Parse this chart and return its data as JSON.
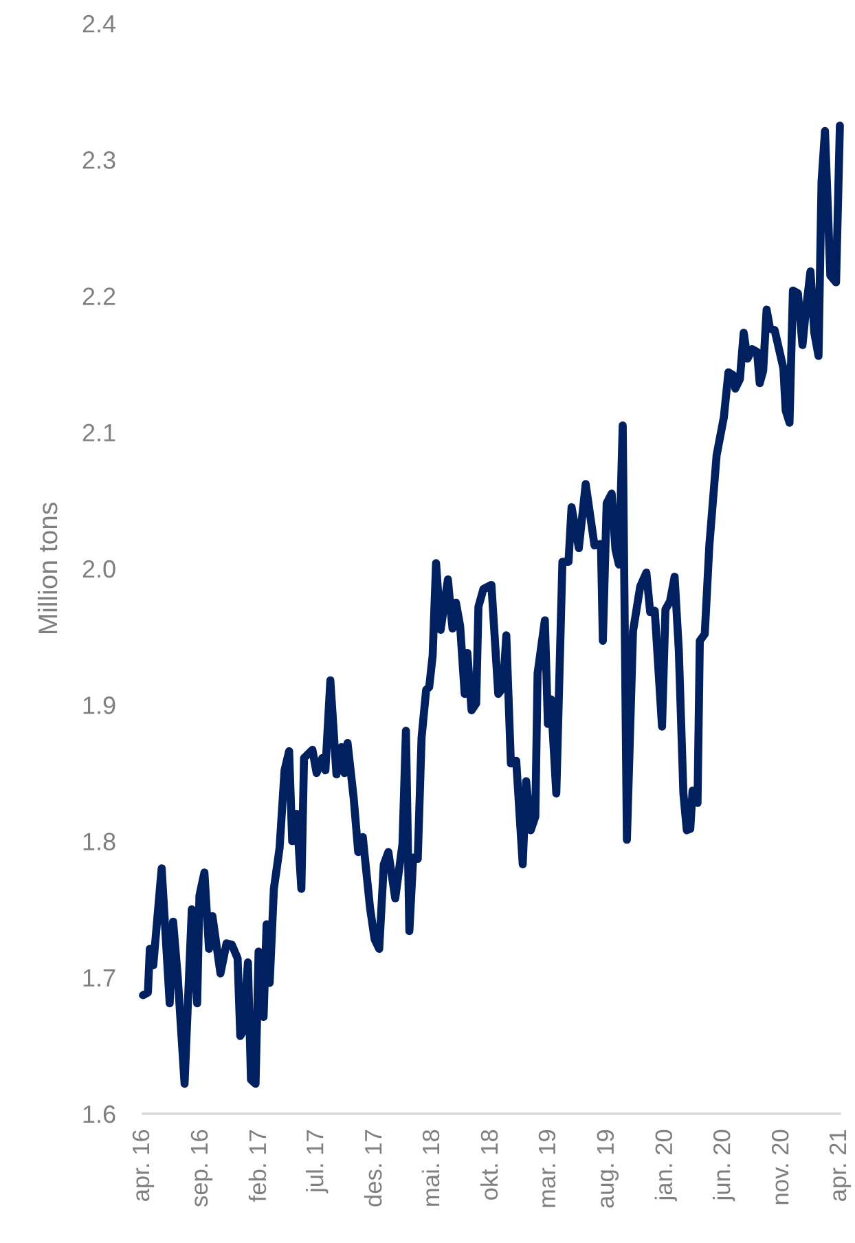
{
  "chart_data": {
    "type": "line",
    "ylabel": "Million tons",
    "ylim": [
      1.6,
      2.4
    ],
    "yticks": [
      1.6,
      1.7,
      1.8,
      1.9,
      {
        "value": 2.0,
        "label": "2.0"
      },
      2.1,
      2.2,
      2.3,
      2.4
    ],
    "xlim": [
      "2016-04-01",
      "2021-04-01"
    ],
    "xticks": [
      {
        "value": "2016-04-01",
        "label": "apr. 16"
      },
      {
        "value": "2016-09-01",
        "label": "sep. 16"
      },
      {
        "value": "2017-02-01",
        "label": "feb. 17"
      },
      {
        "value": "2017-07-01",
        "label": "jul. 17"
      },
      {
        "value": "2017-12-01",
        "label": "des. 17"
      },
      {
        "value": "2018-05-01",
        "label": "mai. 18"
      },
      {
        "value": "2018-10-01",
        "label": "okt. 18"
      },
      {
        "value": "2019-03-01",
        "label": "mar. 19"
      },
      {
        "value": "2019-08-01",
        "label": "aug. 19"
      },
      {
        "value": "2020-01-01",
        "label": "jan. 20"
      },
      {
        "value": "2020-06-01",
        "label": "jun. 20"
      },
      {
        "value": "2020-11-01",
        "label": "nov. 20"
      },
      {
        "value": "2021-04-01",
        "label": "apr. 21"
      }
    ],
    "grid": false,
    "legend": false,
    "marker": "none",
    "line_style": "solid",
    "series": [
      {
        "color": "#002060",
        "x": [
          "2016-04-01",
          "2016-04-14",
          "2016-04-19",
          "2016-04-28",
          "2016-05-20",
          "2016-06-10",
          "2016-06-19",
          "2016-07-01",
          "2016-07-19",
          "2016-08-07",
          "2016-08-21",
          "2016-08-27",
          "2016-09-09",
          "2016-09-21",
          "2016-09-30",
          "2016-10-21",
          "2016-11-06",
          "2016-11-20",
          "2016-12-05",
          "2016-12-12",
          "2016-12-20",
          "2017-01-01",
          "2017-01-09",
          "2017-01-21",
          "2017-01-29",
          "2017-02-11",
          "2017-02-19",
          "2017-02-27",
          "2017-03-10",
          "2017-03-25",
          "2017-04-07",
          "2017-04-19",
          "2017-04-27",
          "2017-05-09",
          "2017-05-21",
          "2017-05-28",
          "2017-06-19",
          "2017-06-30",
          "2017-07-15",
          "2017-07-23",
          "2017-08-05",
          "2017-08-21",
          "2017-09-03",
          "2017-09-11",
          "2017-09-19",
          "2017-10-05",
          "2017-10-17",
          "2017-10-29",
          "2017-11-17",
          "2017-11-29",
          "2017-12-11",
          "2017-12-23",
          "2018-01-04",
          "2018-01-22",
          "2018-02-10",
          "2018-02-19",
          "2018-02-28",
          "2018-03-10",
          "2018-03-22",
          "2018-04-01",
          "2018-04-13",
          "2018-04-21",
          "2018-04-30",
          "2018-05-09",
          "2018-05-21",
          "2018-06-09",
          "2018-06-21",
          "2018-06-30",
          "2018-07-11",
          "2018-07-23",
          "2018-07-30",
          "2018-08-10",
          "2018-08-22",
          "2018-08-28",
          "2018-09-10",
          "2018-10-01",
          "2018-10-19",
          "2018-11-01",
          "2018-11-09",
          "2018-11-21",
          "2018-12-05",
          "2018-12-22",
          "2018-12-31",
          "2019-01-12",
          "2019-01-24",
          "2019-01-30",
          "2019-02-18",
          "2019-02-26",
          "2019-03-06",
          "2019-03-20",
          "2019-04-05",
          "2019-04-21",
          "2019-04-29",
          "2019-05-18",
          "2019-06-05",
          "2019-06-28",
          "2019-07-15",
          "2019-07-20",
          "2019-07-30",
          "2019-08-12",
          "2019-08-22",
          "2019-08-31",
          "2019-09-10",
          "2019-09-21",
          "2019-10-07",
          "2019-10-26",
          "2019-11-11",
          "2019-11-21",
          "2019-12-03",
          "2019-12-22",
          "2019-12-31",
          "2020-01-12",
          "2020-01-24",
          "2020-02-04",
          "2020-02-16",
          "2020-02-25",
          "2020-03-05",
          "2020-03-11",
          "2020-03-24",
          "2020-03-30",
          "2020-04-12",
          "2020-04-24",
          "2020-05-13",
          "2020-06-01",
          "2020-06-13",
          "2020-06-25",
          "2020-07-01",
          "2020-07-13",
          "2020-07-23",
          "2020-08-02",
          "2020-08-14",
          "2020-08-27",
          "2020-09-03",
          "2020-09-12",
          "2020-09-21",
          "2020-09-30",
          "2020-10-12",
          "2020-11-04",
          "2020-11-10",
          "2020-11-20",
          "2020-11-29",
          "2020-12-12",
          "2020-12-24",
          "2021-01-02",
          "2021-01-14",
          "2021-01-24",
          "2021-02-04",
          "2021-02-12",
          "2021-02-21",
          "2021-03-07",
          "2021-03-22",
          "2021-04-01"
        ],
        "values": [
          1.687,
          1.689,
          1.721,
          1.709,
          1.78,
          1.681,
          1.741,
          1.701,
          1.622,
          1.75,
          1.681,
          1.76,
          1.777,
          1.721,
          1.745,
          1.703,
          1.725,
          1.724,
          1.714,
          1.657,
          1.661,
          1.711,
          1.625,
          1.622,
          1.719,
          1.671,
          1.739,
          1.696,
          1.765,
          1.795,
          1.852,
          1.866,
          1.8,
          1.82,
          1.765,
          1.861,
          1.867,
          1.85,
          1.861,
          1.852,
          1.918,
          1.849,
          1.869,
          1.85,
          1.872,
          1.832,
          1.792,
          1.803,
          1.751,
          1.728,
          1.721,
          1.783,
          1.792,
          1.758,
          1.798,
          1.881,
          1.734,
          1.788,
          1.787,
          1.876,
          1.911,
          1.913,
          1.936,
          2.004,
          1.955,
          1.992,
          1.956,
          1.975,
          1.958,
          1.908,
          1.938,
          1.896,
          1.901,
          1.972,
          1.985,
          1.988,
          1.908,
          1.913,
          1.951,
          1.857,
          1.859,
          1.783,
          1.844,
          1.808,
          1.818,
          1.923,
          1.962,
          1.886,
          1.904,
          1.835,
          2.005,
          2.005,
          2.045,
          2.015,
          2.062,
          2.017,
          2.018,
          1.947,
          2.048,
          2.055,
          2.014,
          2.003,
          2.105,
          1.801,
          1.954,
          1.987,
          1.997,
          1.968,
          1.969,
          1.884,
          1.97,
          1.976,
          1.994,
          1.94,
          1.835,
          1.808,
          1.809,
          1.837,
          1.828,
          1.947,
          1.952,
          2.017,
          2.083,
          2.111,
          2.144,
          2.142,
          2.132,
          2.139,
          2.173,
          2.154,
          2.161,
          2.159,
          2.136,
          2.145,
          2.19,
          2.176,
          2.175,
          2.147,
          2.116,
          2.107,
          2.204,
          2.202,
          2.164,
          2.19,
          2.218,
          2.173,
          2.156,
          2.284,
          2.321,
          2.215,
          2.21,
          2.325
        ]
      }
    ]
  }
}
